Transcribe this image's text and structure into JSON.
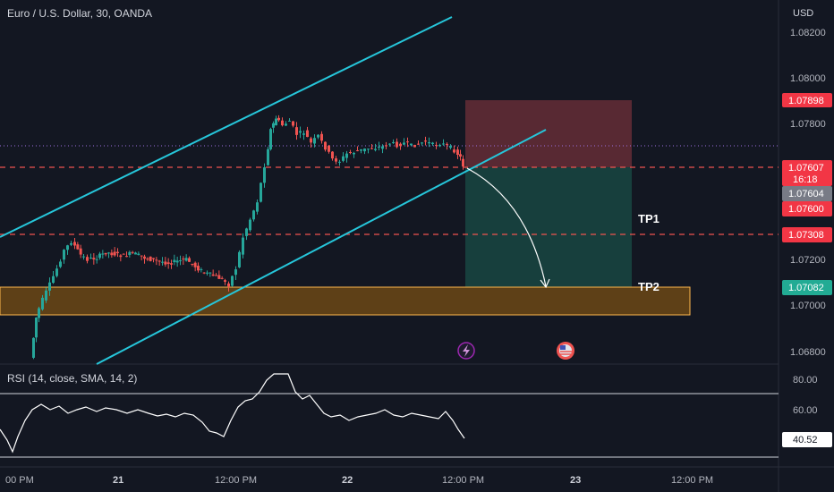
{
  "header": {
    "title": "Euro / U.S. Dollar, 30, OANDA"
  },
  "price_axis": {
    "currency": "USD",
    "ticks": [
      "1.08200",
      "1.08000",
      "1.07800",
      "1.07200",
      "1.07000",
      "1.06800"
    ]
  },
  "price_badges": {
    "stop": "1.07898",
    "current": "1.07607",
    "countdown": "16:18",
    "bid": "1.07604",
    "entry": "1.07600",
    "tp1": "1.07308",
    "tp2": "1.07082"
  },
  "annotations": {
    "tp1_label": "TP1",
    "tp2_label": "TP2"
  },
  "rsi": {
    "title": "RSI (14, close, SMA, 14, 2)",
    "ticks": [
      "80.00",
      "60.00"
    ],
    "current": "40.52"
  },
  "time_axis": {
    "ticks": [
      "00 PM",
      "21",
      "12:00 PM",
      "22",
      "12:00 PM",
      "23",
      "12:00 PM"
    ]
  },
  "colors": {
    "background": "#131722",
    "channel": "#26c6da",
    "bull": "#26a69a",
    "bear": "#ef5350",
    "zone": "#ff9800",
    "stop_box": "#5c2a35",
    "target_box": "#17413f"
  },
  "icons": {
    "event_icon": "lightning-icon",
    "flag_icon": "us-flag-icon"
  }
}
